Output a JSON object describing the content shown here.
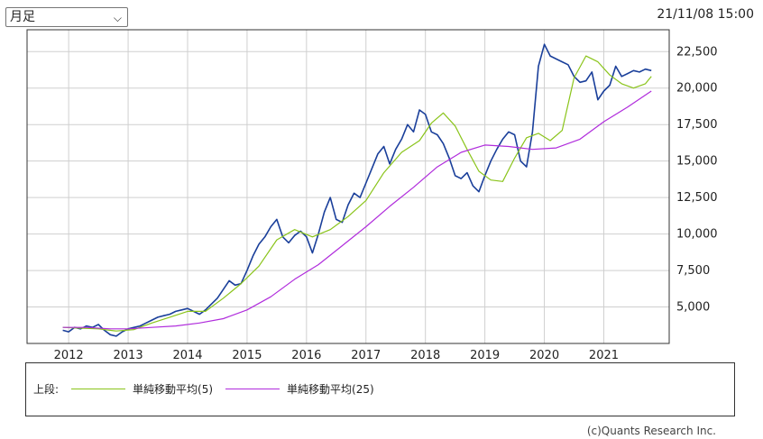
{
  "controls": {
    "period_select": "月足",
    "timestamp": "21/11/08 15:00"
  },
  "legend": {
    "prefix": "上段:",
    "items": [
      {
        "label": "単純移動平均(5)",
        "color": "#8ac41a"
      },
      {
        "label": "単純移動平均(25)",
        "color": "#b02cdc"
      }
    ]
  },
  "copyright": "(c)Quants Research Inc.",
  "colors": {
    "price": "#1a3f9a",
    "grid": "#cfcfcf",
    "frame": "#333333"
  },
  "chart_data": {
    "type": "line",
    "x_ticks": [
      "2012",
      "2013",
      "2014",
      "2015",
      "2016",
      "2017",
      "2018",
      "2019",
      "2020",
      "2021"
    ],
    "y_ticks": [
      "5,000",
      "7,500",
      "10,000",
      "12,500",
      "15,000",
      "17,500",
      "20,000",
      "22,500"
    ],
    "ylim": [
      2500,
      24000
    ],
    "xlim": [
      2011.3,
      2022.1
    ],
    "grid": true,
    "series": [
      {
        "name": "",
        "role": "price",
        "color": "#1a3f9a",
        "x": [
          2011.9,
          2012.0,
          2012.1,
          2012.2,
          2012.3,
          2012.4,
          2012.5,
          2012.6,
          2012.7,
          2012.8,
          2012.9,
          2013.0,
          2013.1,
          2013.2,
          2013.3,
          2013.4,
          2013.5,
          2013.6,
          2013.7,
          2013.8,
          2013.9,
          2014.0,
          2014.1,
          2014.2,
          2014.3,
          2014.4,
          2014.5,
          2014.6,
          2014.7,
          2014.8,
          2014.9,
          2015.0,
          2015.1,
          2015.2,
          2015.3,
          2015.4,
          2015.5,
          2015.6,
          2015.7,
          2015.8,
          2015.9,
          2016.0,
          2016.1,
          2016.2,
          2016.3,
          2016.4,
          2016.5,
          2016.6,
          2016.7,
          2016.8,
          2016.9,
          2017.0,
          2017.1,
          2017.2,
          2017.3,
          2017.4,
          2017.5,
          2017.6,
          2017.7,
          2017.8,
          2017.9,
          2018.0,
          2018.1,
          2018.2,
          2018.3,
          2018.4,
          2018.5,
          2018.6,
          2018.7,
          2018.8,
          2018.9,
          2019.0,
          2019.1,
          2019.2,
          2019.3,
          2019.4,
          2019.5,
          2019.6,
          2019.7,
          2019.8,
          2019.9,
          2020.0,
          2020.1,
          2020.2,
          2020.3,
          2020.4,
          2020.5,
          2020.6,
          2020.7,
          2020.8,
          2020.9,
          2021.0,
          2021.1,
          2021.2,
          2021.3,
          2021.4,
          2021.5,
          2021.6,
          2021.7,
          2021.8
        ],
        "values": [
          3400,
          3300,
          3600,
          3500,
          3700,
          3600,
          3800,
          3400,
          3100,
          3000,
          3300,
          3500,
          3600,
          3700,
          3900,
          4100,
          4300,
          4400,
          4500,
          4700,
          4800,
          4900,
          4700,
          4500,
          4800,
          5200,
          5600,
          6200,
          6800,
          6500,
          6600,
          7500,
          8500,
          9300,
          9800,
          10500,
          11000,
          9800,
          9400,
          9900,
          10200,
          9800,
          8700,
          10000,
          11500,
          12500,
          11000,
          10800,
          12000,
          12800,
          12500,
          13500,
          14500,
          15500,
          16000,
          14800,
          15800,
          16500,
          17500,
          17000,
          18500,
          18200,
          17000,
          16800,
          16200,
          15200,
          14000,
          13800,
          14200,
          13300,
          12900,
          14000,
          15000,
          15800,
          16500,
          17000,
          16800,
          15000,
          14600,
          17000,
          21500,
          23000,
          22200,
          22000,
          21800,
          21600,
          20800,
          20400,
          20500,
          21100,
          19200,
          19800,
          20200,
          21500,
          20800,
          21000,
          21200,
          21100,
          21300,
          21200
        ]
      },
      {
        "name": "単純移動平均(5)",
        "role": "ma5",
        "color": "#8ac41a",
        "x": [
          2011.9,
          2012.2,
          2012.5,
          2012.8,
          2013.1,
          2013.4,
          2013.7,
          2014.0,
          2014.3,
          2014.6,
          2014.9,
          2015.2,
          2015.5,
          2015.8,
          2016.1,
          2016.4,
          2016.7,
          2017.0,
          2017.3,
          2017.6,
          2017.9,
          2018.1,
          2018.3,
          2018.5,
          2018.7,
          2018.9,
          2019.1,
          2019.3,
          2019.5,
          2019.7,
          2019.9,
          2020.1,
          2020.3,
          2020.5,
          2020.7,
          2020.9,
          2021.1,
          2021.3,
          2021.5,
          2021.7,
          2021.8
        ],
        "values": [
          3600,
          3550,
          3500,
          3350,
          3450,
          3900,
          4300,
          4700,
          4700,
          5600,
          6600,
          7800,
          9600,
          10300,
          9800,
          10300,
          11200,
          12300,
          14200,
          15600,
          16400,
          17600,
          18300,
          17400,
          15800,
          14300,
          13700,
          13600,
          15200,
          16600,
          16900,
          16400,
          17100,
          20700,
          22200,
          21800,
          20900,
          20300,
          20000,
          20300,
          20800
        ]
      },
      {
        "name": "単純移動平均(25)",
        "role": "ma25",
        "color": "#b02cdc",
        "x": [
          2011.9,
          2012.3,
          2012.7,
          2013.0,
          2013.4,
          2013.8,
          2014.2,
          2014.6,
          2015.0,
          2015.4,
          2015.8,
          2016.2,
          2016.6,
          2017.0,
          2017.4,
          2017.8,
          2018.2,
          2018.6,
          2019.0,
          2019.4,
          2019.8,
          2020.2,
          2020.6,
          2021.0,
          2021.4,
          2021.8
        ],
        "values": [
          3600,
          3600,
          3500,
          3500,
          3600,
          3700,
          3900,
          4200,
          4800,
          5700,
          6900,
          7900,
          9200,
          10500,
          11900,
          13200,
          14600,
          15600,
          16100,
          16000,
          15800,
          15900,
          16500,
          17700,
          18700,
          19800
        ]
      }
    ]
  }
}
